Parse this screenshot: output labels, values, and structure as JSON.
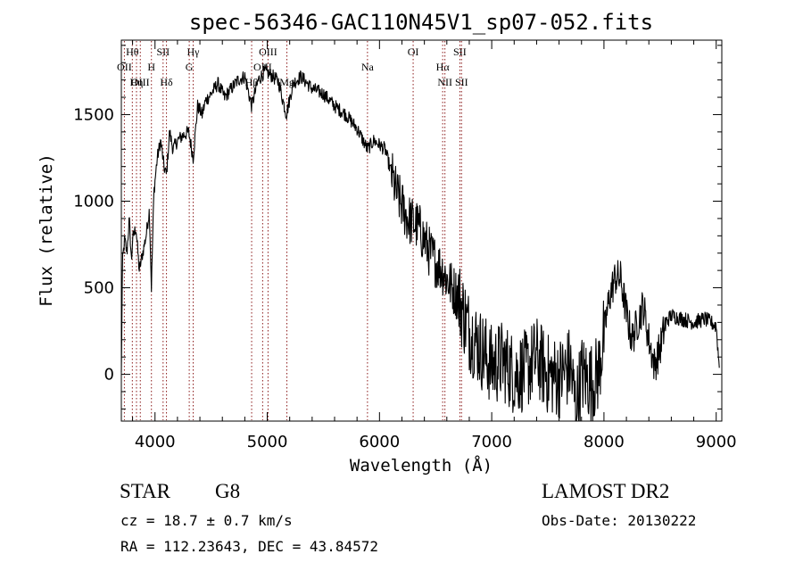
{
  "chart_data": {
    "type": "line",
    "title": "spec-56346-GAC110N45V1_sp07-052.fits",
    "xlabel": "Wavelength (Å)",
    "ylabel": "Flux (relative)",
    "xlim": [
      3700,
      9050
    ],
    "ylim": [
      -270,
      1930
    ],
    "xticks": [
      4000,
      5000,
      6000,
      7000,
      8000,
      9000
    ],
    "xtick_labels": [
      "4000",
      "5000",
      "6000",
      "7000",
      "8000",
      "9000"
    ],
    "yticks": [
      0,
      500,
      1000,
      1500
    ],
    "ytick_labels": [
      "0",
      "500",
      "1000",
      "1500"
    ],
    "grid": false,
    "line_color": "#000000",
    "marker_color": "#8b1a1a",
    "spectrum_anchors": [
      [
        3700,
        0
      ],
      [
        3710,
        650
      ],
      [
        3730,
        780
      ],
      [
        3750,
        700
      ],
      [
        3770,
        900
      ],
      [
        3790,
        650
      ],
      [
        3800,
        780
      ],
      [
        3830,
        850
      ],
      [
        3860,
        600
      ],
      [
        3890,
        700
      ],
      [
        3920,
        800
      ],
      [
        3950,
        950
      ],
      [
        3968,
        500
      ],
      [
        3990,
        1050
      ],
      [
        4020,
        1250
      ],
      [
        4050,
        1350
      ],
      [
        4080,
        1200
      ],
      [
        4102,
        1150
      ],
      [
        4130,
        1400
      ],
      [
        4160,
        1300
      ],
      [
        4200,
        1350
      ],
      [
        4250,
        1380
      ],
      [
        4300,
        1400
      ],
      [
        4340,
        1250
      ],
      [
        4380,
        1550
      ],
      [
        4420,
        1500
      ],
      [
        4450,
        1580
      ],
      [
        4500,
        1620
      ],
      [
        4560,
        1680
      ],
      [
        4620,
        1600
      ],
      [
        4680,
        1650
      ],
      [
        4740,
        1700
      ],
      [
        4800,
        1720
      ],
      [
        4861,
        1550
      ],
      [
        4920,
        1700
      ],
      [
        4980,
        1750
      ],
      [
        5050,
        1720
      ],
      [
        5100,
        1690
      ],
      [
        5170,
        1500
      ],
      [
        5230,
        1680
      ],
      [
        5300,
        1720
      ],
      [
        5400,
        1650
      ],
      [
        5500,
        1620
      ],
      [
        5600,
        1550
      ],
      [
        5700,
        1500
      ],
      [
        5800,
        1420
      ],
      [
        5893,
        1300
      ],
      [
        5950,
        1350
      ],
      [
        6050,
        1300
      ],
      [
        6150,
        1050
      ],
      [
        6250,
        900
      ],
      [
        6350,
        850
      ],
      [
        6450,
        700
      ],
      [
        6500,
        650
      ],
      [
        6563,
        600
      ],
      [
        6600,
        550
      ],
      [
        6700,
        450
      ],
      [
        6800,
        250
      ],
      [
        6900,
        150
      ],
      [
        7000,
        50
      ],
      [
        7100,
        80
      ],
      [
        7200,
        0
      ],
      [
        7300,
        20
      ],
      [
        7400,
        100
      ],
      [
        7500,
        0
      ],
      [
        7600,
        -20
      ],
      [
        7700,
        50
      ],
      [
        7750,
        -200
      ],
      [
        7800,
        0
      ],
      [
        7900,
        -50
      ],
      [
        7950,
        10
      ],
      [
        8050,
        450
      ],
      [
        8100,
        560
      ],
      [
        8150,
        550
      ],
      [
        8200,
        350
      ],
      [
        8250,
        200
      ],
      [
        8300,
        300
      ],
      [
        8350,
        400
      ],
      [
        8400,
        200
      ],
      [
        8450,
        50
      ],
      [
        8500,
        150
      ],
      [
        8550,
        300
      ],
      [
        8600,
        340
      ],
      [
        8700,
        320
      ],
      [
        8800,
        300
      ],
      [
        8900,
        320
      ],
      [
        9000,
        280
      ],
      [
        9030,
        20
      ]
    ],
    "lines": [
      {
        "name": "Hθ",
        "x": 3798,
        "row": 1
      },
      {
        "name": "OII",
        "x": 3727,
        "row": 2
      },
      {
        "name": "OIII",
        "x": 3869,
        "row": 3
      },
      {
        "name": "Hη",
        "x": 3835,
        "row": 3
      },
      {
        "name": "SII",
        "x": 4072,
        "row": 1
      },
      {
        "name": "H",
        "x": 3968,
        "row": 2
      },
      {
        "name": "Hδ",
        "x": 4102,
        "row": 3
      },
      {
        "name": "Hγ",
        "x": 4340,
        "row": 1
      },
      {
        "name": "G",
        "x": 4305,
        "row": 2
      },
      {
        "name": "OIII",
        "x": 5007,
        "row": 1
      },
      {
        "name": "OIII",
        "x": 4959,
        "row": 2
      },
      {
        "name": "Hβ",
        "x": 4861,
        "row": 3
      },
      {
        "name": "Mg",
        "x": 5175,
        "row": 3
      },
      {
        "name": "Na",
        "x": 5893,
        "row": 2
      },
      {
        "name": "OI",
        "x": 6300,
        "row": 1
      },
      {
        "name": "Hα",
        "x": 6563,
        "row": 2
      },
      {
        "name": "NII",
        "x": 6583,
        "row": 3
      },
      {
        "name": "SII",
        "x": 6716,
        "row": 1
      },
      {
        "name": "SII",
        "x": 6731,
        "row": 3
      }
    ]
  },
  "info": {
    "object_class": "STAR",
    "subclass": "G8",
    "survey": "LAMOST DR2",
    "redshift": "cz = 18.7 ± 0.7 km/s",
    "obs_date": "Obs-Date: 20130222",
    "coords": "RA = 112.23643, DEC =  43.84572"
  }
}
